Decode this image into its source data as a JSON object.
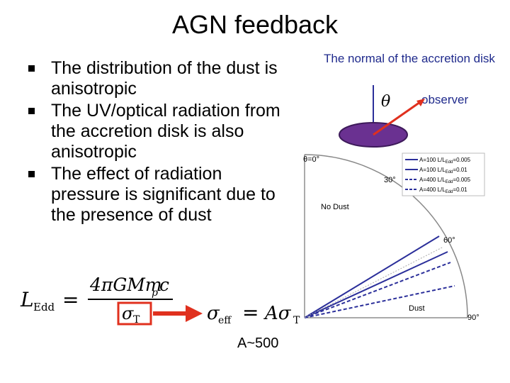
{
  "slide": {
    "title": "AGN feedback",
    "bullets": [
      "The distribution of the dust is anisotropic",
      "The UV/optical radiation from the accretion disk is also anisotropic",
      "The effect of radiation pressure is significant due to the presence of dust"
    ],
    "equation": {
      "lhs": "L",
      "lhs_sub": "Edd",
      "numerator": "4πGMm",
      "numerator_sub": "p",
      "numerator_tail": "c",
      "denominator": "σ",
      "denominator_sub": "T",
      "sigma_eff": "σ",
      "sigma_eff_sub": "eff",
      "rhs": "Aσ",
      "rhs_sub": "T",
      "equals": "="
    },
    "factor_note": "A~500"
  },
  "diagram": {
    "normal_label": "The normal of the accretion disk",
    "observer_label": "observer",
    "theta_symbol": "θ",
    "angle_labels": [
      "θ=0°",
      "30°",
      "60°",
      "90°"
    ],
    "region_labels": [
      "No Dust",
      "Dust"
    ],
    "legend": [
      {
        "label": "A=100 L/L",
        "sub": "Edd",
        "tail": "=0.005",
        "style": "solid"
      },
      {
        "label": "A=100 L/L",
        "sub": "Edd",
        "tail": "=0.01",
        "style": "solid"
      },
      {
        "label": "A=400 L/L",
        "sub": "Edd",
        "tail": "=0.005",
        "style": "dashed"
      },
      {
        "label": "A=400 L/L",
        "sub": "Edd",
        "tail": "=0.01",
        "style": "dashed"
      }
    ],
    "colors": {
      "line": "#2b2f9a",
      "disk": "#6a3191",
      "arrow": "#e0301e",
      "highlight": "#e0301e"
    }
  }
}
